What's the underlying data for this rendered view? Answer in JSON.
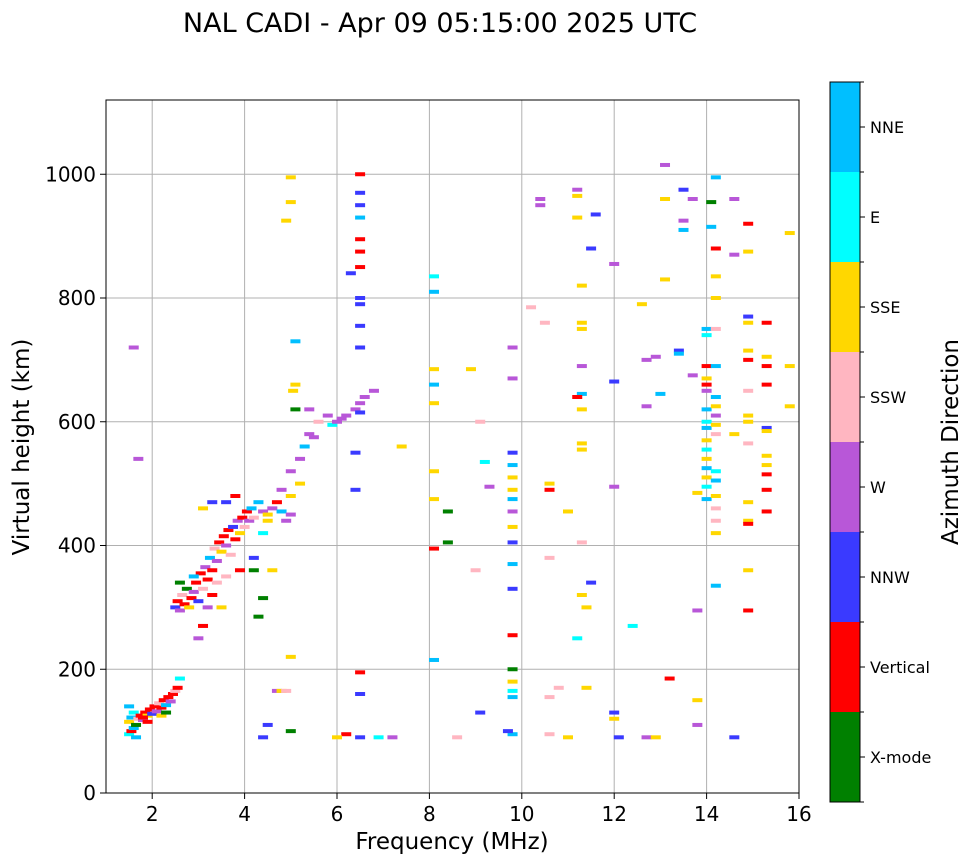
{
  "chart_data": {
    "type": "scatter",
    "title": "NAL CADI - Apr 09 05:15:00 2025 UTC",
    "xlabel": "Frequency (MHz)",
    "ylabel": "Virtual height (km)",
    "xlim": [
      1,
      16
    ],
    "ylim": [
      0,
      1120
    ],
    "xticks": [
      2,
      4,
      6,
      8,
      10,
      12,
      14,
      16
    ],
    "yticks": [
      0,
      200,
      400,
      600,
      800,
      1000
    ],
    "grid": true,
    "colorbar": {
      "label": "Azimuth Direction",
      "categories": [
        {
          "name": "X-mode",
          "color": "#008000"
        },
        {
          "name": "Vertical",
          "color": "#ff0000"
        },
        {
          "name": "NNW",
          "color": "#3a3aff"
        },
        {
          "name": "W",
          "color": "#b857d8"
        },
        {
          "name": "SSW",
          "color": "#ffb6c1"
        },
        {
          "name": "SSE",
          "color": "#ffd700"
        },
        {
          "name": "E",
          "color": "#00ffff"
        },
        {
          "name": "NNE",
          "color": "#00bfff"
        }
      ]
    },
    "points": [
      [
        1.5,
        95,
        "E"
      ],
      [
        1.55,
        100,
        "Vertical"
      ],
      [
        1.6,
        105,
        "NNE"
      ],
      [
        1.5,
        115,
        "SSE"
      ],
      [
        1.55,
        122,
        "NNE"
      ],
      [
        1.65,
        110,
        "X-mode"
      ],
      [
        1.7,
        120,
        "SSW"
      ],
      [
        1.6,
        130,
        "E"
      ],
      [
        1.75,
        125,
        "Vertical"
      ],
      [
        1.8,
        118,
        "W"
      ],
      [
        1.85,
        130,
        "Vertical"
      ],
      [
        1.9,
        125,
        "SSE"
      ],
      [
        1.95,
        135,
        "Vertical"
      ],
      [
        2.0,
        128,
        "NNW"
      ],
      [
        2.05,
        140,
        "Vertical"
      ],
      [
        2.1,
        132,
        "W"
      ],
      [
        2.15,
        145,
        "SSW"
      ],
      [
        2.2,
        138,
        "Vertical"
      ],
      [
        2.25,
        150,
        "Vertical"
      ],
      [
        2.3,
        142,
        "NNE"
      ],
      [
        2.35,
        155,
        "Vertical"
      ],
      [
        2.4,
        148,
        "W"
      ],
      [
        2.45,
        160,
        "Vertical"
      ],
      [
        2.5,
        165,
        "SSW"
      ],
      [
        2.55,
        170,
        "Vertical"
      ],
      [
        2.6,
        185,
        "E"
      ],
      [
        2.2,
        125,
        "SSE"
      ],
      [
        2.3,
        130,
        "X-mode"
      ],
      [
        1.5,
        140,
        "NNE"
      ],
      [
        1.9,
        115,
        "Vertical"
      ],
      [
        1.65,
        90,
        "NNE"
      ],
      [
        1.8,
        122,
        "Vertical"
      ],
      [
        2.5,
        300,
        "NNW"
      ],
      [
        2.55,
        310,
        "Vertical"
      ],
      [
        2.6,
        295,
        "W"
      ],
      [
        2.65,
        320,
        "SSW"
      ],
      [
        2.7,
        305,
        "Vertical"
      ],
      [
        2.75,
        330,
        "X-mode"
      ],
      [
        2.8,
        300,
        "SSE"
      ],
      [
        2.85,
        315,
        "Vertical"
      ],
      [
        2.9,
        325,
        "W"
      ],
      [
        2.95,
        340,
        "Vertical"
      ],
      [
        3.0,
        310,
        "NNW"
      ],
      [
        3.05,
        355,
        "Vertical"
      ],
      [
        3.1,
        330,
        "SSW"
      ],
      [
        3.15,
        365,
        "W"
      ],
      [
        3.2,
        345,
        "Vertical"
      ],
      [
        3.25,
        380,
        "NNE"
      ],
      [
        3.3,
        360,
        "Vertical"
      ],
      [
        3.35,
        395,
        "SSW"
      ],
      [
        3.4,
        375,
        "W"
      ],
      [
        3.45,
        405,
        "Vertical"
      ],
      [
        3.5,
        390,
        "SSE"
      ],
      [
        3.55,
        415,
        "Vertical"
      ],
      [
        3.6,
        400,
        "W"
      ],
      [
        3.65,
        425,
        "Vertical"
      ],
      [
        3.7,
        385,
        "SSW"
      ],
      [
        3.75,
        430,
        "NNW"
      ],
      [
        3.8,
        410,
        "Vertical"
      ],
      [
        3.85,
        440,
        "W"
      ],
      [
        3.9,
        420,
        "SSE"
      ],
      [
        3.95,
        445,
        "Vertical"
      ],
      [
        4.0,
        430,
        "SSW"
      ],
      [
        4.05,
        455,
        "Vertical"
      ],
      [
        4.1,
        440,
        "W"
      ],
      [
        4.15,
        460,
        "NNE"
      ],
      [
        4.2,
        445,
        "SSW"
      ],
      [
        4.3,
        470,
        "NNE"
      ],
      [
        4.4,
        455,
        "W"
      ],
      [
        4.5,
        450,
        "SSE"
      ],
      [
        4.6,
        460,
        "W"
      ],
      [
        4.7,
        470,
        "Vertical"
      ],
      [
        4.8,
        455,
        "NNE"
      ],
      [
        4.9,
        440,
        "W"
      ],
      [
        5.0,
        450,
        "W"
      ],
      [
        3.1,
        270,
        "Vertical"
      ],
      [
        3.0,
        250,
        "W"
      ],
      [
        3.5,
        300,
        "SSE"
      ],
      [
        3.3,
        320,
        "Vertical"
      ],
      [
        3.4,
        340,
        "SSW"
      ],
      [
        3.6,
        350,
        "SSW"
      ],
      [
        3.2,
        300,
        "W"
      ],
      [
        3.9,
        360,
        "Vertical"
      ],
      [
        4.2,
        380,
        "NNW"
      ],
      [
        4.4,
        420,
        "E"
      ],
      [
        4.5,
        440,
        "SSE"
      ],
      [
        4.6,
        360,
        "SSE"
      ],
      [
        3.8,
        480,
        "Vertical"
      ],
      [
        3.6,
        470,
        "NNW"
      ],
      [
        2.6,
        340,
        "X-mode"
      ],
      [
        2.9,
        350,
        "NNE"
      ],
      [
        4.3,
        285,
        "X-mode"
      ],
      [
        4.4,
        315,
        "X-mode"
      ],
      [
        4.2,
        360,
        "X-mode"
      ],
      [
        3.1,
        460,
        "SSE"
      ],
      [
        3.3,
        470,
        "NNW"
      ],
      [
        4.8,
        490,
        "W"
      ],
      [
        5.0,
        480,
        "SSE"
      ],
      [
        5.0,
        520,
        "W"
      ],
      [
        5.2,
        540,
        "W"
      ],
      [
        5.3,
        560,
        "NNE"
      ],
      [
        5.4,
        580,
        "W"
      ],
      [
        5.5,
        575,
        "W"
      ],
      [
        5.6,
        600,
        "SSW"
      ],
      [
        5.8,
        610,
        "W"
      ],
      [
        5.9,
        595,
        "E"
      ],
      [
        6.0,
        600,
        "W"
      ],
      [
        6.1,
        605,
        "W"
      ],
      [
        6.2,
        610,
        "W"
      ],
      [
        5.1,
        620,
        "X-mode"
      ],
      [
        5.05,
        650,
        "SSE"
      ],
      [
        5.1,
        660,
        "SSE"
      ],
      [
        5.4,
        620,
        "W"
      ],
      [
        6.4,
        620,
        "W"
      ],
      [
        6.5,
        630,
        "W"
      ],
      [
        6.6,
        640,
        "W"
      ],
      [
        6.8,
        650,
        "W"
      ],
      [
        5.2,
        500,
        "SSE"
      ],
      [
        5.0,
        100,
        "X-mode"
      ],
      [
        4.5,
        110,
        "NNW"
      ],
      [
        4.7,
        165,
        "W"
      ],
      [
        4.8,
        165,
        "SSE"
      ],
      [
        4.9,
        165,
        "SSW"
      ],
      [
        4.4,
        90,
        "NNW"
      ],
      [
        5.0,
        220,
        "SSE"
      ],
      [
        4.9,
        925,
        "SSE"
      ],
      [
        5.0,
        955,
        "SSE"
      ],
      [
        5.0,
        995,
        "SSE"
      ],
      [
        1.6,
        720,
        "W"
      ],
      [
        1.7,
        540,
        "W"
      ],
      [
        5.1,
        730,
        "NNE"
      ],
      [
        6.5,
        1000,
        "Vertical"
      ],
      [
        6.5,
        970,
        "NNW"
      ],
      [
        6.5,
        950,
        "NNW"
      ],
      [
        6.5,
        930,
        "NNE"
      ],
      [
        6.5,
        895,
        "Vertical"
      ],
      [
        6.5,
        875,
        "Vertical"
      ],
      [
        6.5,
        850,
        "Vertical"
      ],
      [
        6.5,
        800,
        "NNW"
      ],
      [
        6.5,
        790,
        "NNW"
      ],
      [
        6.5,
        755,
        "NNW"
      ],
      [
        6.5,
        720,
        "NNW"
      ],
      [
        6.5,
        615,
        "NNW"
      ],
      [
        6.4,
        550,
        "NNW"
      ],
      [
        6.4,
        490,
        "NNW"
      ],
      [
        6.3,
        840,
        "NNW"
      ],
      [
        6.5,
        195,
        "Vertical"
      ],
      [
        6.5,
        160,
        "NNW"
      ],
      [
        6.2,
        95,
        "Vertical"
      ],
      [
        6.5,
        90,
        "NNW"
      ],
      [
        6.9,
        90,
        "E"
      ],
      [
        7.2,
        90,
        "W"
      ],
      [
        6.0,
        90,
        "SSE"
      ],
      [
        7.4,
        560,
        "SSE"
      ],
      [
        8.1,
        835,
        "E"
      ],
      [
        8.1,
        810,
        "NNE"
      ],
      [
        8.1,
        685,
        "SSE"
      ],
      [
        8.1,
        630,
        "SSE"
      ],
      [
        8.1,
        660,
        "NNE"
      ],
      [
        8.1,
        520,
        "SSE"
      ],
      [
        8.1,
        475,
        "SSE"
      ],
      [
        8.4,
        455,
        "X-mode"
      ],
      [
        8.4,
        405,
        "X-mode"
      ],
      [
        8.1,
        395,
        "Vertical"
      ],
      [
        8.1,
        215,
        "NNE"
      ],
      [
        8.6,
        90,
        "SSW"
      ],
      [
        8.9,
        685,
        "SSE"
      ],
      [
        9.1,
        600,
        "SSW"
      ],
      [
        9.2,
        535,
        "E"
      ],
      [
        9.3,
        495,
        "W"
      ],
      [
        9.0,
        360,
        "SSW"
      ],
      [
        9.1,
        130,
        "NNW"
      ],
      [
        9.8,
        720,
        "W"
      ],
      [
        9.8,
        670,
        "W"
      ],
      [
        9.8,
        550,
        "NNW"
      ],
      [
        9.8,
        530,
        "NNE"
      ],
      [
        9.8,
        510,
        "SSE"
      ],
      [
        9.8,
        490,
        "SSE"
      ],
      [
        9.8,
        475,
        "NNE"
      ],
      [
        9.8,
        455,
        "W"
      ],
      [
        9.8,
        430,
        "SSE"
      ],
      [
        9.8,
        405,
        "NNW"
      ],
      [
        9.8,
        370,
        "NNE"
      ],
      [
        9.8,
        330,
        "NNW"
      ],
      [
        9.8,
        255,
        "Vertical"
      ],
      [
        9.8,
        200,
        "X-mode"
      ],
      [
        9.8,
        180,
        "SSE"
      ],
      [
        9.8,
        165,
        "E"
      ],
      [
        9.8,
        155,
        "NNE"
      ],
      [
        9.8,
        95,
        "NNE"
      ],
      [
        9.7,
        100,
        "NNW"
      ],
      [
        10.2,
        785,
        "SSW"
      ],
      [
        10.4,
        960,
        "W"
      ],
      [
        10.4,
        950,
        "W"
      ],
      [
        10.5,
        760,
        "SSW"
      ],
      [
        10.6,
        500,
        "SSE"
      ],
      [
        10.6,
        490,
        "Vertical"
      ],
      [
        10.6,
        380,
        "SSW"
      ],
      [
        10.6,
        155,
        "SSW"
      ],
      [
        10.6,
        95,
        "SSW"
      ],
      [
        10.8,
        170,
        "SSW"
      ],
      [
        11.2,
        975,
        "W"
      ],
      [
        11.2,
        965,
        "SSE"
      ],
      [
        11.2,
        930,
        "SSE"
      ],
      [
        11.3,
        820,
        "SSE"
      ],
      [
        11.3,
        760,
        "SSE"
      ],
      [
        11.3,
        750,
        "SSE"
      ],
      [
        11.3,
        690,
        "W"
      ],
      [
        11.3,
        645,
        "NNE"
      ],
      [
        11.2,
        640,
        "Vertical"
      ],
      [
        11.3,
        620,
        "SSE"
      ],
      [
        11.3,
        565,
        "SSE"
      ],
      [
        11.3,
        555,
        "SSE"
      ],
      [
        11.3,
        405,
        "SSW"
      ],
      [
        11.3,
        320,
        "SSE"
      ],
      [
        11.4,
        300,
        "SSE"
      ],
      [
        11.2,
        250,
        "E"
      ],
      [
        11.4,
        170,
        "SSE"
      ],
      [
        11.5,
        340,
        "NNW"
      ],
      [
        11.5,
        880,
        "NNW"
      ],
      [
        11.6,
        935,
        "NNW"
      ],
      [
        11.0,
        455,
        "SSE"
      ],
      [
        11.0,
        90,
        "SSE"
      ],
      [
        12.0,
        855,
        "W"
      ],
      [
        12.0,
        665,
        "NNW"
      ],
      [
        12.0,
        495,
        "W"
      ],
      [
        12.0,
        130,
        "NNW"
      ],
      [
        12.0,
        120,
        "SSE"
      ],
      [
        12.1,
        90,
        "NNW"
      ],
      [
        12.4,
        270,
        "E"
      ],
      [
        12.6,
        790,
        "SSE"
      ],
      [
        12.7,
        700,
        "W"
      ],
      [
        12.7,
        625,
        "W"
      ],
      [
        12.7,
        90,
        "W"
      ],
      [
        12.9,
        705,
        "W"
      ],
      [
        13.0,
        645,
        "NNE"
      ],
      [
        12.9,
        90,
        "SSE"
      ],
      [
        13.1,
        1015,
        "W"
      ],
      [
        13.1,
        830,
        "SSE"
      ],
      [
        13.1,
        960,
        "SSE"
      ],
      [
        13.2,
        185,
        "Vertical"
      ],
      [
        13.4,
        715,
        "NNW"
      ],
      [
        13.4,
        710,
        "NNE"
      ],
      [
        13.5,
        975,
        "NNW"
      ],
      [
        13.5,
        925,
        "W"
      ],
      [
        13.5,
        910,
        "NNE"
      ],
      [
        13.7,
        960,
        "W"
      ],
      [
        13.7,
        675,
        "W"
      ],
      [
        13.8,
        295,
        "W"
      ],
      [
        13.8,
        150,
        "SSE"
      ],
      [
        13.8,
        110,
        "W"
      ],
      [
        13.8,
        485,
        "SSE"
      ],
      [
        14.0,
        750,
        "NNE"
      ],
      [
        14.0,
        740,
        "E"
      ],
      [
        14.0,
        670,
        "SSE"
      ],
      [
        14.0,
        660,
        "Vertical"
      ],
      [
        14.0,
        650,
        "W"
      ],
      [
        14.0,
        620,
        "NNE"
      ],
      [
        14.0,
        600,
        "E"
      ],
      [
        14.0,
        590,
        "NNE"
      ],
      [
        14.0,
        570,
        "SSE"
      ],
      [
        14.0,
        555,
        "E"
      ],
      [
        14.0,
        540,
        "SSE"
      ],
      [
        14.0,
        525,
        "NNE"
      ],
      [
        14.0,
        510,
        "SSE"
      ],
      [
        14.0,
        495,
        "E"
      ],
      [
        14.0,
        475,
        "NNE"
      ],
      [
        14.0,
        690,
        "Vertical"
      ],
      [
        14.2,
        995,
        "NNE"
      ],
      [
        14.1,
        955,
        "X-mode"
      ],
      [
        14.1,
        915,
        "NNE"
      ],
      [
        14.2,
        880,
        "Vertical"
      ],
      [
        14.2,
        835,
        "SSE"
      ],
      [
        14.2,
        800,
        "SSE"
      ],
      [
        14.2,
        750,
        "SSW"
      ],
      [
        14.2,
        690,
        "NNE"
      ],
      [
        14.2,
        640,
        "NNE"
      ],
      [
        14.2,
        625,
        "SSE"
      ],
      [
        14.2,
        610,
        "W"
      ],
      [
        14.2,
        595,
        "SSE"
      ],
      [
        14.2,
        580,
        "SSW"
      ],
      [
        14.2,
        520,
        "E"
      ],
      [
        14.2,
        505,
        "NNE"
      ],
      [
        14.2,
        480,
        "SSE"
      ],
      [
        14.2,
        460,
        "SSW"
      ],
      [
        14.2,
        440,
        "SSW"
      ],
      [
        14.2,
        420,
        "SSE"
      ],
      [
        14.2,
        335,
        "NNE"
      ],
      [
        14.6,
        960,
        "W"
      ],
      [
        14.6,
        870,
        "W"
      ],
      [
        14.6,
        580,
        "SSE"
      ],
      [
        14.6,
        90,
        "NNW"
      ],
      [
        14.9,
        920,
        "Vertical"
      ],
      [
        14.9,
        875,
        "SSE"
      ],
      [
        14.9,
        770,
        "NNW"
      ],
      [
        14.9,
        760,
        "SSE"
      ],
      [
        14.9,
        715,
        "SSE"
      ],
      [
        14.9,
        700,
        "Vertical"
      ],
      [
        14.9,
        650,
        "SSW"
      ],
      [
        14.9,
        610,
        "SSE"
      ],
      [
        14.9,
        600,
        "SSE"
      ],
      [
        14.9,
        565,
        "SSW"
      ],
      [
        14.9,
        470,
        "SSE"
      ],
      [
        14.9,
        440,
        "SSE"
      ],
      [
        14.9,
        435,
        "Vertical"
      ],
      [
        14.9,
        360,
        "SSE"
      ],
      [
        14.9,
        295,
        "Vertical"
      ],
      [
        15.3,
        760,
        "Vertical"
      ],
      [
        15.3,
        705,
        "SSE"
      ],
      [
        15.3,
        690,
        "Vertical"
      ],
      [
        15.3,
        660,
        "Vertical"
      ],
      [
        15.3,
        590,
        "NNW"
      ],
      [
        15.3,
        585,
        "SSE"
      ],
      [
        15.3,
        545,
        "SSE"
      ],
      [
        15.3,
        530,
        "SSE"
      ],
      [
        15.3,
        515,
        "Vertical"
      ],
      [
        15.3,
        490,
        "Vertical"
      ],
      [
        15.3,
        455,
        "Vertical"
      ],
      [
        15.8,
        905,
        "SSE"
      ],
      [
        15.8,
        690,
        "SSE"
      ],
      [
        15.8,
        625,
        "SSE"
      ]
    ]
  }
}
